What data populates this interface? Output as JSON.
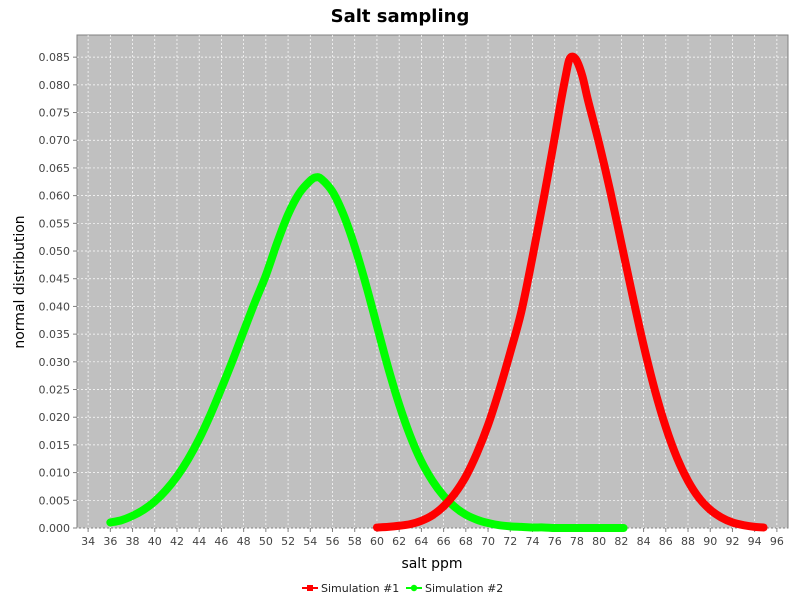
{
  "chart_data": {
    "type": "line",
    "title": "Salt sampling",
    "xlabel": "salt ppm",
    "ylabel": "normal distribution",
    "xlim": [
      33,
      97
    ],
    "ylim": [
      0,
      0.089
    ],
    "x_ticks": [
      34,
      36,
      38,
      40,
      42,
      44,
      46,
      48,
      50,
      52,
      54,
      56,
      58,
      60,
      62,
      64,
      66,
      68,
      70,
      72,
      74,
      76,
      78,
      80,
      82,
      84,
      86,
      88,
      90,
      92,
      94,
      96
    ],
    "y_ticks": [
      "0.000",
      "0.005",
      "0.010",
      "0.015",
      "0.020",
      "0.025",
      "0.030",
      "0.035",
      "0.040",
      "0.045",
      "0.050",
      "0.055",
      "0.060",
      "0.065",
      "0.070",
      "0.075",
      "0.080",
      "0.085"
    ],
    "grid": true,
    "legend_position": "bottom",
    "series": [
      {
        "name": "Simulation #1",
        "color": "#ff0000",
        "marker": "square",
        "x_range": [
          60.0,
          94.8
        ],
        "x": [
          60.0,
          61.0,
          62.0,
          63.0,
          64.0,
          65.0,
          66.0,
          67.0,
          68.0,
          69.0,
          70.0,
          71.0,
          72.0,
          73.0,
          74.0,
          75.0,
          76.0,
          76.5,
          77.0,
          77.3,
          77.6,
          78.0,
          78.5,
          79.0,
          80.0,
          81.0,
          82.0,
          83.0,
          84.0,
          85.0,
          86.0,
          87.0,
          88.0,
          89.0,
          90.0,
          91.0,
          92.0,
          93.0,
          94.0,
          94.8
        ],
        "values": [
          0.0001,
          0.0002,
          0.0004,
          0.0007,
          0.0013,
          0.0023,
          0.0039,
          0.0062,
          0.0093,
          0.0135,
          0.0186,
          0.0248,
          0.0317,
          0.0391,
          0.0489,
          0.0594,
          0.0705,
          0.0764,
          0.0817,
          0.0845,
          0.0851,
          0.0843,
          0.0815,
          0.0772,
          0.0694,
          0.0608,
          0.0514,
          0.042,
          0.033,
          0.025,
          0.0182,
          0.0127,
          0.0085,
          0.0054,
          0.0033,
          0.0019,
          0.001,
          0.0005,
          0.0002,
          0.0001
        ]
      },
      {
        "name": "Simulation #2",
        "color": "#00ff00",
        "marker": "circle",
        "x_range": [
          36.0,
          82.2
        ],
        "x": [
          36.0,
          37.0,
          38.0,
          39.0,
          40.0,
          41.0,
          42.0,
          43.0,
          44.0,
          45.0,
          46.0,
          47.0,
          48.0,
          49.0,
          50.0,
          51.0,
          52.0,
          53.0,
          54.0,
          54.5,
          55.0,
          56.0,
          57.0,
          58.0,
          59.0,
          60.0,
          61.0,
          62.0,
          63.0,
          64.0,
          65.0,
          66.0,
          67.0,
          68.0,
          69.0,
          70.0,
          71.0,
          72.0,
          73.0,
          74.0,
          75.0,
          76.0,
          77.0,
          78.0,
          79.0,
          80.0,
          81.0,
          82.2
        ],
        "values": [
          0.001,
          0.0014,
          0.0022,
          0.0033,
          0.0048,
          0.0068,
          0.0093,
          0.0124,
          0.0161,
          0.0204,
          0.0252,
          0.0302,
          0.0355,
          0.0407,
          0.0456,
          0.0514,
          0.0566,
          0.0604,
          0.0627,
          0.0633,
          0.063,
          0.0607,
          0.0565,
          0.0508,
          0.044,
          0.0365,
          0.029,
          0.0223,
          0.0166,
          0.012,
          0.0085,
          0.0058,
          0.0038,
          0.0024,
          0.0015,
          0.0009,
          0.0005,
          0.0003,
          0.0002,
          0.0001,
          0.0001,
          0.0,
          0.0,
          0.0,
          0.0,
          0.0,
          0.0,
          0.0
        ]
      }
    ]
  }
}
